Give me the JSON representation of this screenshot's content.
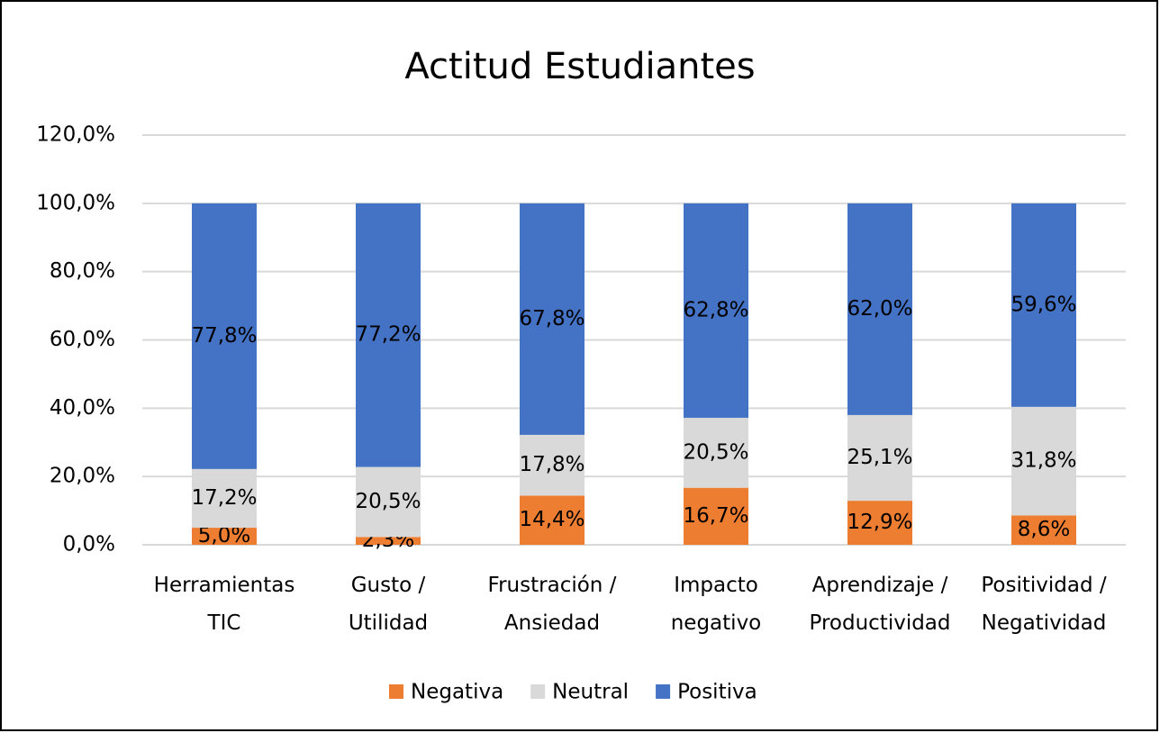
{
  "chart_data": {
    "type": "stacked_bar",
    "title": "Actitud Estudiantes",
    "categories": [
      "Herramientas TIC",
      "Gusto / Utilidad",
      "Frustración / Ansiedad",
      "Impacto negativo",
      "Aprendizaje / Productividad",
      "Positividad / Negatividad"
    ],
    "series": [
      {
        "name": "Negativa",
        "color": "#ed7d31",
        "values": [
          5.0,
          2.3,
          14.4,
          16.7,
          12.9,
          8.6
        ],
        "value_labels": [
          "5,0%",
          "2,3%",
          "14,4%",
          "16,7%",
          "12,9%",
          "8,6%"
        ]
      },
      {
        "name": "Neutral",
        "color": "#d9d9d9",
        "values": [
          17.2,
          20.5,
          17.8,
          20.5,
          25.1,
          31.8
        ],
        "value_labels": [
          "17,2%",
          "20,5%",
          "17,8%",
          "20,5%",
          "25,1%",
          "31,8%"
        ]
      },
      {
        "name": "Positiva",
        "color": "#4472c4",
        "values": [
          77.8,
          77.2,
          67.8,
          62.8,
          62.0,
          59.6
        ],
        "value_labels": [
          "77,8%",
          "77,2%",
          "67,8%",
          "62,8%",
          "62,0%",
          "59,6%"
        ]
      }
    ],
    "ylim": [
      0,
      120
    ],
    "yticks": [
      {
        "value": 0,
        "label": "0,0%"
      },
      {
        "value": 20,
        "label": "20,0%"
      },
      {
        "value": 40,
        "label": "40,0%"
      },
      {
        "value": 60,
        "label": "60,0%"
      },
      {
        "value": 80,
        "label": "80,0%"
      },
      {
        "value": 100,
        "label": "100,0%"
      },
      {
        "value": 120,
        "label": "120,0%"
      }
    ],
    "grid": true,
    "legend": "bottom"
  }
}
